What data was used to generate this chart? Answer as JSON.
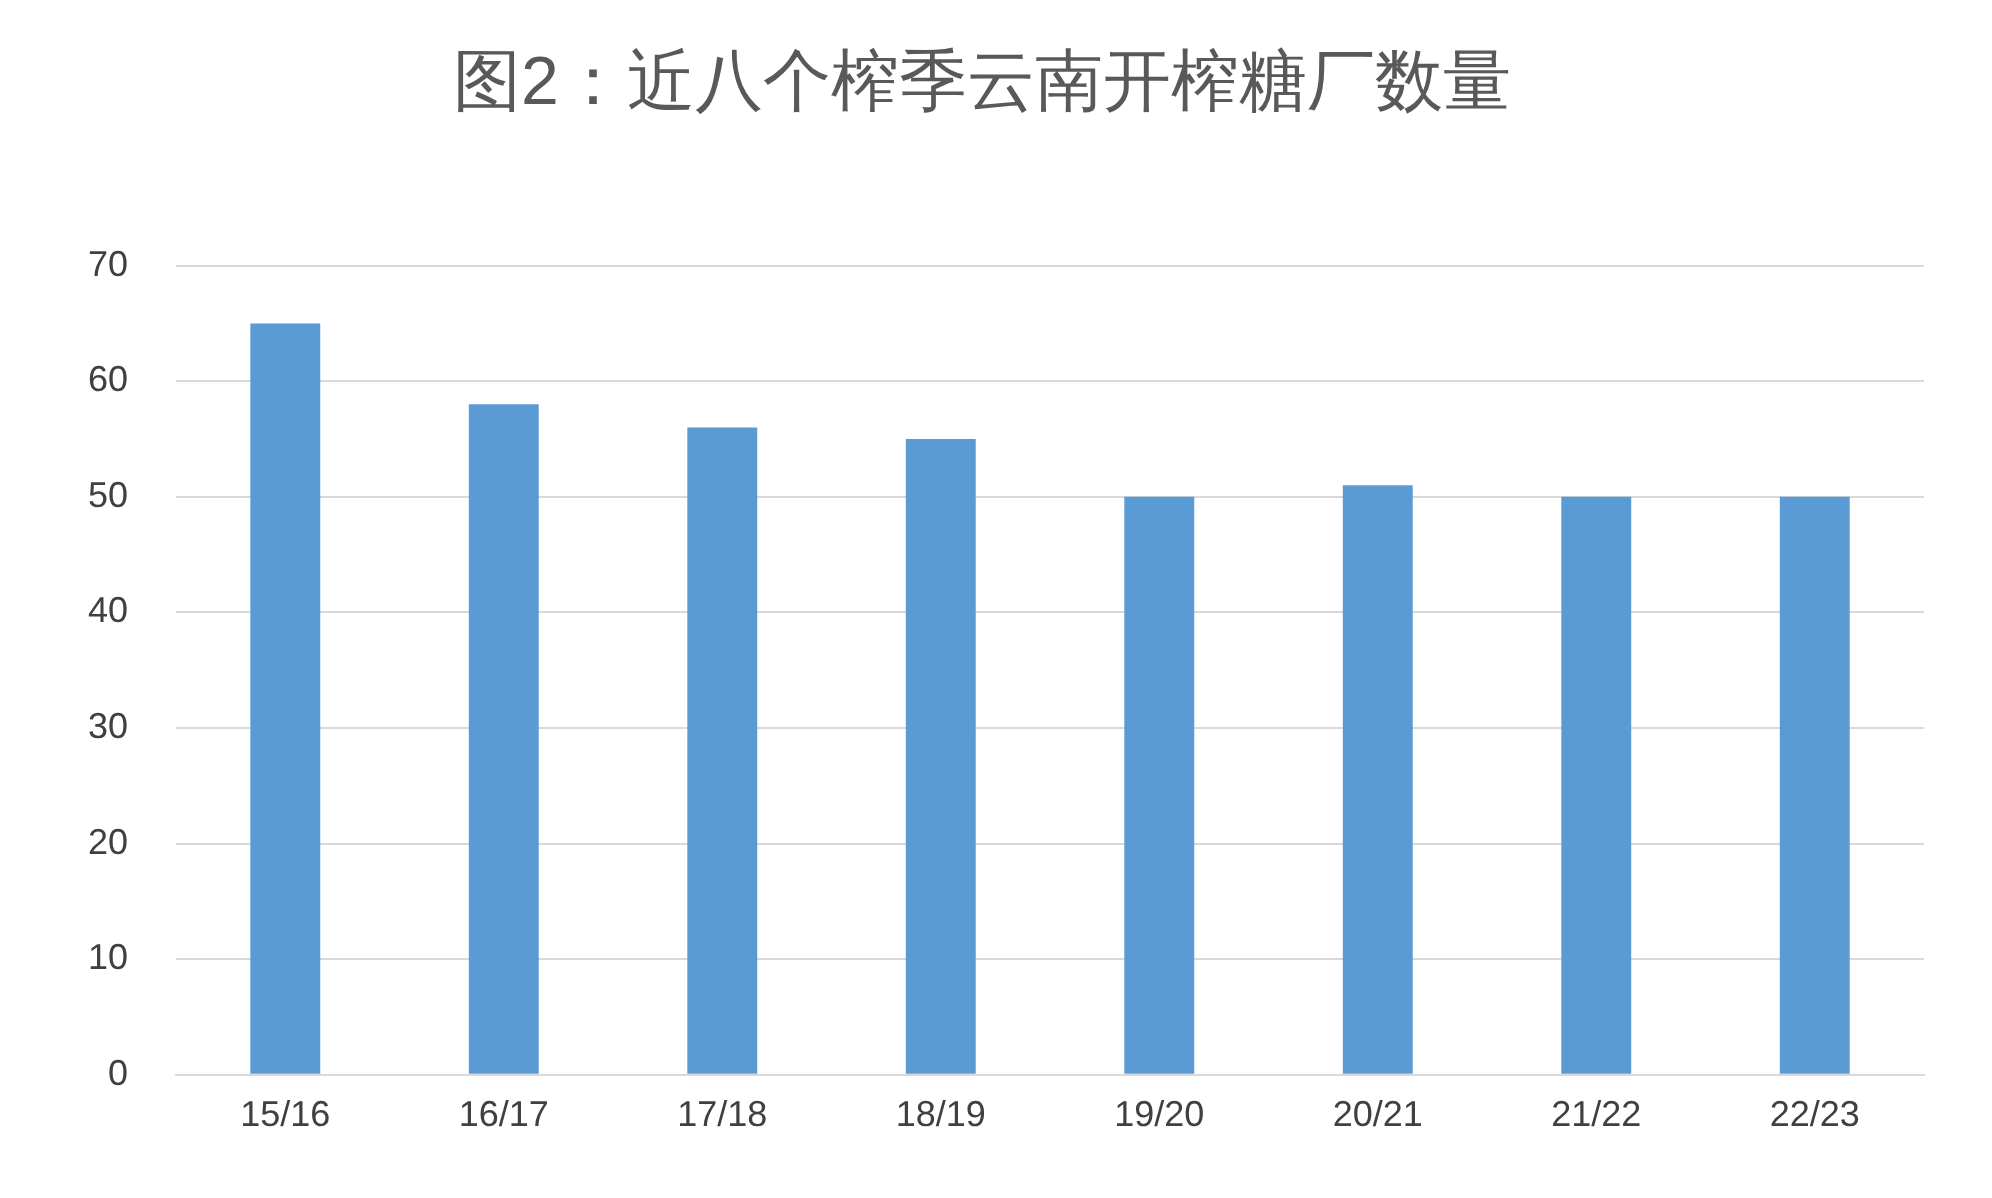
{
  "chart_data": {
    "type": "bar",
    "title": "图2：近八个榨季云南开榨糖厂数量",
    "categories": [
      "15/16",
      "16/17",
      "17/18",
      "18/19",
      "19/20",
      "20/21",
      "21/22",
      "22/23"
    ],
    "values": [
      65,
      58,
      56,
      55,
      50,
      51,
      50,
      50
    ],
    "color": "#5b9bd5",
    "ylim": [
      0,
      70
    ],
    "yticks": [
      0,
      10,
      20,
      30,
      40,
      50,
      60,
      70
    ],
    "grid": "y"
  }
}
